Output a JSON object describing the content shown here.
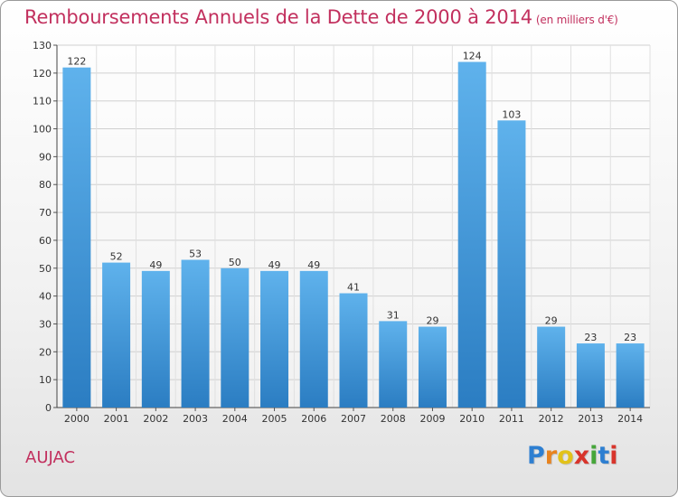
{
  "header": {
    "title": "Remboursements Annuels de la Dette de 2000 à 2014",
    "unit": "(en milliers d'€)"
  },
  "footer": {
    "commune": "AUJAC",
    "logo_letters": [
      "P",
      "r",
      "o",
      "x",
      "i",
      "t",
      "i"
    ],
    "logo_colors": [
      "#2e7fd1",
      "#e8831e",
      "#e2c21a",
      "#d8342b",
      "#46a63a",
      "#2e7fd1",
      "#d8342b"
    ]
  },
  "colors": {
    "bar_top": "#5fb2ec",
    "bar_bottom": "#2b7dc2",
    "grid": "#d0d0d0",
    "text": "#333333",
    "accent": "#c2305e"
  },
  "chart_data": {
    "type": "bar",
    "categories": [
      "2000",
      "2001",
      "2002",
      "2003",
      "2004",
      "2005",
      "2006",
      "2007",
      "2008",
      "2009",
      "2010",
      "2011",
      "2012",
      "2013",
      "2014"
    ],
    "values": [
      122,
      52,
      49,
      53,
      50,
      49,
      49,
      41,
      31,
      29,
      124,
      103,
      29,
      23,
      23
    ],
    "title": "Remboursements Annuels de la Dette de 2000 à 2014",
    "xlabel": "",
    "ylabel": "",
    "ylim": [
      0,
      130
    ],
    "yticks": [
      0,
      10,
      20,
      30,
      40,
      50,
      60,
      70,
      80,
      90,
      100,
      110,
      120,
      130
    ],
    "grid": true,
    "data_labels": true
  }
}
